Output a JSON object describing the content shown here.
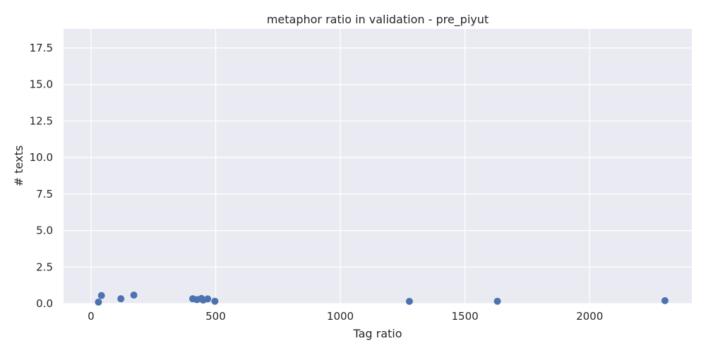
{
  "chart_data": {
    "type": "scatter",
    "title": "metaphor ratio in validation - pre_piyut",
    "xlabel": "Tag ratio",
    "ylabel": "# texts",
    "xlim": [
      -110,
      2410
    ],
    "ylim": [
      0,
      18.8
    ],
    "xticks": [
      0,
      500,
      1000,
      1500,
      2000
    ],
    "xtick_labels": [
      "0",
      "500",
      "1000",
      "1500",
      "2000"
    ],
    "yticks": [
      0.0,
      2.5,
      5.0,
      7.5,
      10.0,
      12.5,
      15.0,
      17.5
    ],
    "ytick_labels": [
      "0.0",
      "2.5",
      "5.0",
      "7.5",
      "10.0",
      "12.5",
      "15.0",
      "17.5"
    ],
    "grid": true,
    "legend": "none",
    "series": [
      {
        "x": [
          30,
          42,
          120,
          172,
          408,
          425,
          443,
          450,
          468,
          497,
          1277,
          1630,
          2302
        ],
        "y": [
          0.1,
          0.55,
          0.33,
          0.58,
          0.33,
          0.27,
          0.35,
          0.24,
          0.32,
          0.16,
          0.15,
          0.16,
          0.2
        ]
      }
    ],
    "colors": {
      "point": "#4c72b0",
      "plot_background": "#eaeaf2",
      "grid": "#ffffff",
      "text": "#262626"
    }
  }
}
